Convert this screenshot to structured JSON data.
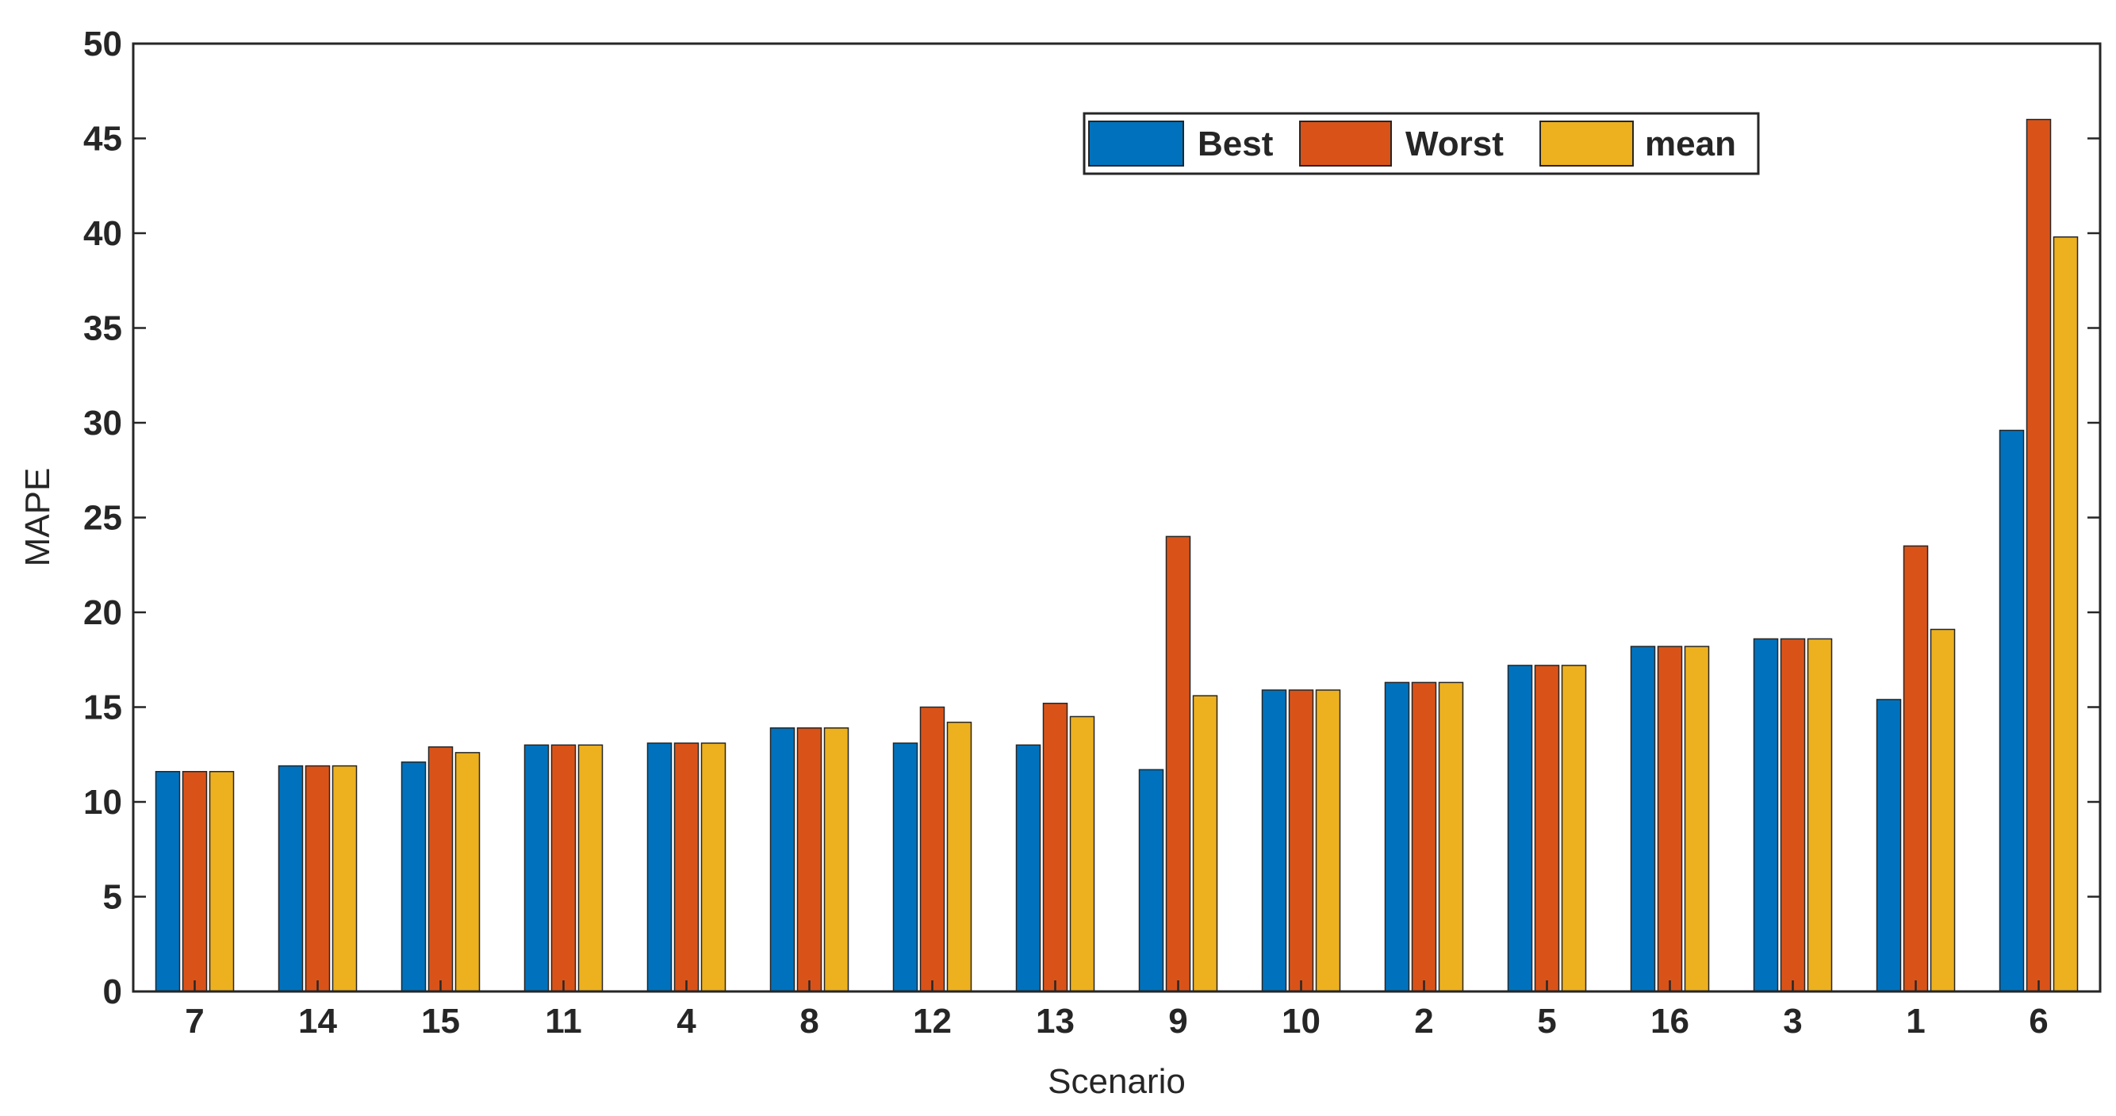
{
  "chart_data": {
    "type": "bar",
    "xlabel": "Scenario",
    "ylabel": "MAPE",
    "ylim": [
      0,
      50
    ],
    "yticks": [
      0,
      5,
      10,
      15,
      20,
      25,
      30,
      35,
      40,
      45,
      50
    ],
    "grid": false,
    "legend_position": "top-right-inside",
    "categories": [
      "7",
      "14",
      "15",
      "11",
      "4",
      "8",
      "12",
      "13",
      "9",
      "10",
      "2",
      "5",
      "16",
      "3",
      "1",
      "6"
    ],
    "series": [
      {
        "name": "Best",
        "color": "#0072BD",
        "values": [
          11.6,
          11.9,
          12.1,
          13.0,
          13.1,
          13.9,
          13.1,
          13.0,
          11.7,
          15.9,
          16.3,
          17.2,
          18.2,
          18.6,
          15.4,
          29.6
        ]
      },
      {
        "name": "Worst",
        "color": "#D95319",
        "values": [
          11.6,
          11.9,
          12.9,
          13.0,
          13.1,
          13.9,
          15.0,
          15.2,
          24.0,
          15.9,
          16.3,
          17.2,
          18.2,
          18.6,
          23.5,
          46.0
        ]
      },
      {
        "name": "mean",
        "color": "#EDB120",
        "values": [
          11.6,
          11.9,
          12.6,
          13.0,
          13.1,
          13.9,
          14.2,
          14.5,
          15.6,
          15.9,
          16.3,
          17.2,
          18.2,
          18.6,
          19.1,
          39.8
        ]
      }
    ]
  }
}
